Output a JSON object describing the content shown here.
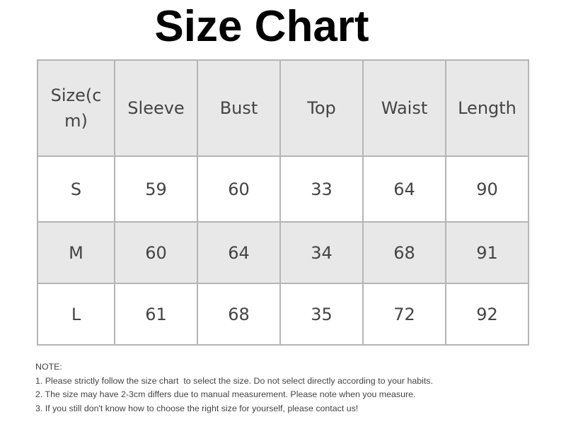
{
  "title": "Size Chart",
  "headers": [
    "Size(c m)",
    "Sleeve",
    "Bust",
    "Top",
    "Waist",
    "Length"
  ],
  "rows": [
    [
      "S",
      "59",
      "60",
      "33",
      "64",
      "90"
    ],
    [
      "M",
      "60",
      "64",
      "34",
      "68",
      "91"
    ],
    [
      "L",
      "61",
      "68",
      "35",
      "72",
      "92"
    ]
  ],
  "notes": {
    "heading": "NOTE:",
    "items": [
      "1. Please strictly follow the size chart  to select the size. Do not select directly according to your habits.",
      "2. The size may have 2-3cm differs due to manual measurement. Please note when you measure.",
      "3. If you still don't know how to choose the right size for yourself, please contact us!"
    ]
  },
  "colors": {
    "header_bg": "#e8e8e8",
    "border": "#b5b5b5"
  }
}
